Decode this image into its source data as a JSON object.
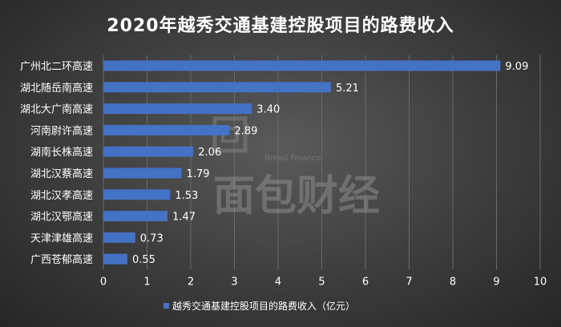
{
  "chart_data": {
    "type": "bar",
    "orientation": "horizontal",
    "title": "2020年越秀交通基建控股项目的路费收入",
    "categories": [
      "广州北二环高速",
      "湖北随岳南高速",
      "湖北大广南高速",
      "河南尉许高速",
      "湖南长株高速",
      "湖北汉蔡高速",
      "湖北汉孝高速",
      "湖北汉鄂高速",
      "天津津雄高速",
      "广西苍郁高速"
    ],
    "series": [
      {
        "name": "越秀交通基建控股项目的路费收入（亿元）",
        "values": [
          9.09,
          5.21,
          3.4,
          2.89,
          2.06,
          1.79,
          1.53,
          1.47,
          0.73,
          0.55
        ]
      }
    ],
    "value_labels": [
      "9.09",
      "5.21",
      "3.40",
      "2.89",
      "2.06",
      "1.79",
      "1.53",
      "1.47",
      "0.73",
      "0.55"
    ],
    "xlim": [
      0,
      10
    ],
    "x_ticks": [
      "0",
      "1",
      "2",
      "3",
      "4",
      "5",
      "6",
      "7",
      "8",
      "9",
      "10"
    ],
    "grid": true,
    "legend_position": "bottom",
    "bar_color": "#4472c4"
  },
  "watermark": {
    "text_cn": "面包财经",
    "text_en": "Bread Finance"
  }
}
